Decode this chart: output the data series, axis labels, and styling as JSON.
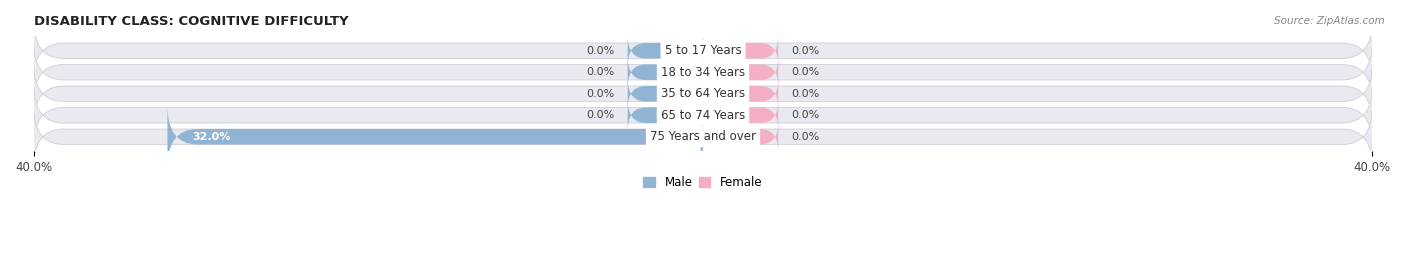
{
  "title": "DISABILITY CLASS: COGNITIVE DIFFICULTY",
  "source": "Source: ZipAtlas.com",
  "categories": [
    "5 to 17 Years",
    "18 to 34 Years",
    "35 to 64 Years",
    "65 to 74 Years",
    "75 Years and over"
  ],
  "male_values": [
    0.0,
    0.0,
    0.0,
    0.0,
    32.0
  ],
  "female_values": [
    0.0,
    0.0,
    0.0,
    0.0,
    0.0
  ],
  "x_min": -40.0,
  "x_max": 40.0,
  "male_color": "#92b4d4",
  "female_color": "#f4afc5",
  "male_label": "Male",
  "female_label": "Female",
  "bar_bg_color": "#e9e9f0",
  "bar_bg_edge": "#d0d0da",
  "bar_height": 0.72,
  "stub_size": 4.5,
  "title_fontsize": 9.5,
  "axis_fontsize": 8.5,
  "label_fontsize": 8.0,
  "category_fontsize": 8.5,
  "tick_label_color": "#444444",
  "title_color": "#222222",
  "source_color": "#888888"
}
